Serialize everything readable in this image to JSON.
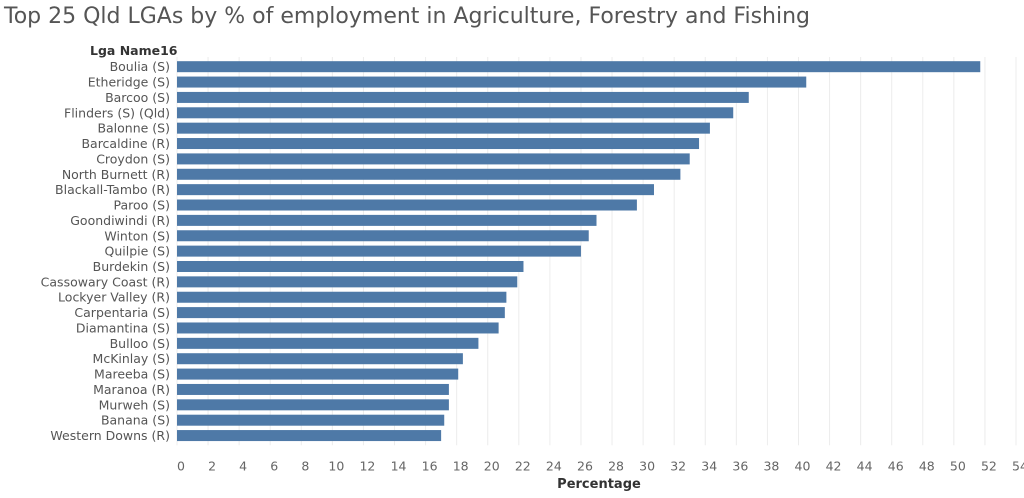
{
  "title": "Top 25 Qld LGAs by % of employment in Agriculture, Forestry and Fishing",
  "chart_data": {
    "type": "bar",
    "orientation": "horizontal",
    "category_header": "Lga Name16",
    "xlabel": "Percentage",
    "xlim": [
      0,
      54
    ],
    "xticks": [
      0,
      2,
      4,
      6,
      8,
      10,
      12,
      14,
      16,
      18,
      20,
      22,
      24,
      26,
      28,
      30,
      32,
      34,
      36,
      38,
      40,
      42,
      44,
      46,
      48,
      50,
      52,
      54
    ],
    "grid": "vertical",
    "bar_color": "#4e79a7",
    "categories": [
      "Boulia (S)",
      "Etheridge (S)",
      "Barcoo (S)",
      "Flinders (S) (Qld)",
      "Balonne (S)",
      "Barcaldine (R)",
      "Croydon (S)",
      "North Burnett (R)",
      "Blackall-Tambo (R)",
      "Paroo (S)",
      "Goondiwindi (R)",
      "Winton (S)",
      "Quilpie (S)",
      "Burdekin (S)",
      "Cassowary Coast (R)",
      "Lockyer Valley (R)",
      "Carpentaria (S)",
      "Diamantina (S)",
      "Bulloo (S)",
      "McKinlay (S)",
      "Mareeba (S)",
      "Maranoa (R)",
      "Murweh (S)",
      "Banana (S)",
      "Western Downs (R)"
    ],
    "values": [
      51.7,
      40.5,
      36.8,
      35.8,
      34.3,
      33.6,
      33.0,
      32.4,
      30.7,
      29.6,
      27.0,
      26.5,
      26.0,
      22.3,
      21.9,
      21.2,
      21.1,
      20.7,
      19.4,
      18.4,
      18.1,
      17.5,
      17.5,
      17.2,
      17.0
    ]
  }
}
